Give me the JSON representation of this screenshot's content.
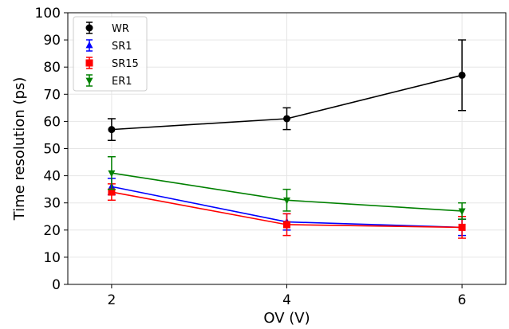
{
  "chart_data": {
    "type": "line",
    "xlabel": "OV (V)",
    "ylabel": "Time resolution (ps)",
    "xlim": [
      1.5,
      6.5
    ],
    "ylim": [
      0,
      100
    ],
    "xticks": [
      2,
      4,
      6
    ],
    "yticks": [
      0,
      10,
      20,
      30,
      40,
      50,
      60,
      70,
      80,
      90,
      100
    ],
    "grid": true,
    "legend_position": "top-left",
    "x": [
      2,
      4,
      6
    ],
    "series": [
      {
        "name": "WR",
        "color": "#000000",
        "marker": "circle",
        "values": [
          57,
          61,
          77
        ],
        "errors": [
          4,
          4,
          13
        ]
      },
      {
        "name": "SR1",
        "color": "#0000ff",
        "marker": "triangle-up",
        "values": [
          36,
          23,
          21
        ],
        "errors": [
          3,
          3,
          3
        ]
      },
      {
        "name": "SR15",
        "color": "#ff0000",
        "marker": "square",
        "values": [
          34,
          22,
          21
        ],
        "errors": [
          3,
          4,
          4
        ]
      },
      {
        "name": "ER1",
        "color": "#008000",
        "marker": "triangle-down",
        "values": [
          41,
          31,
          27
        ],
        "errors": [
          6,
          4,
          3
        ]
      }
    ]
  }
}
